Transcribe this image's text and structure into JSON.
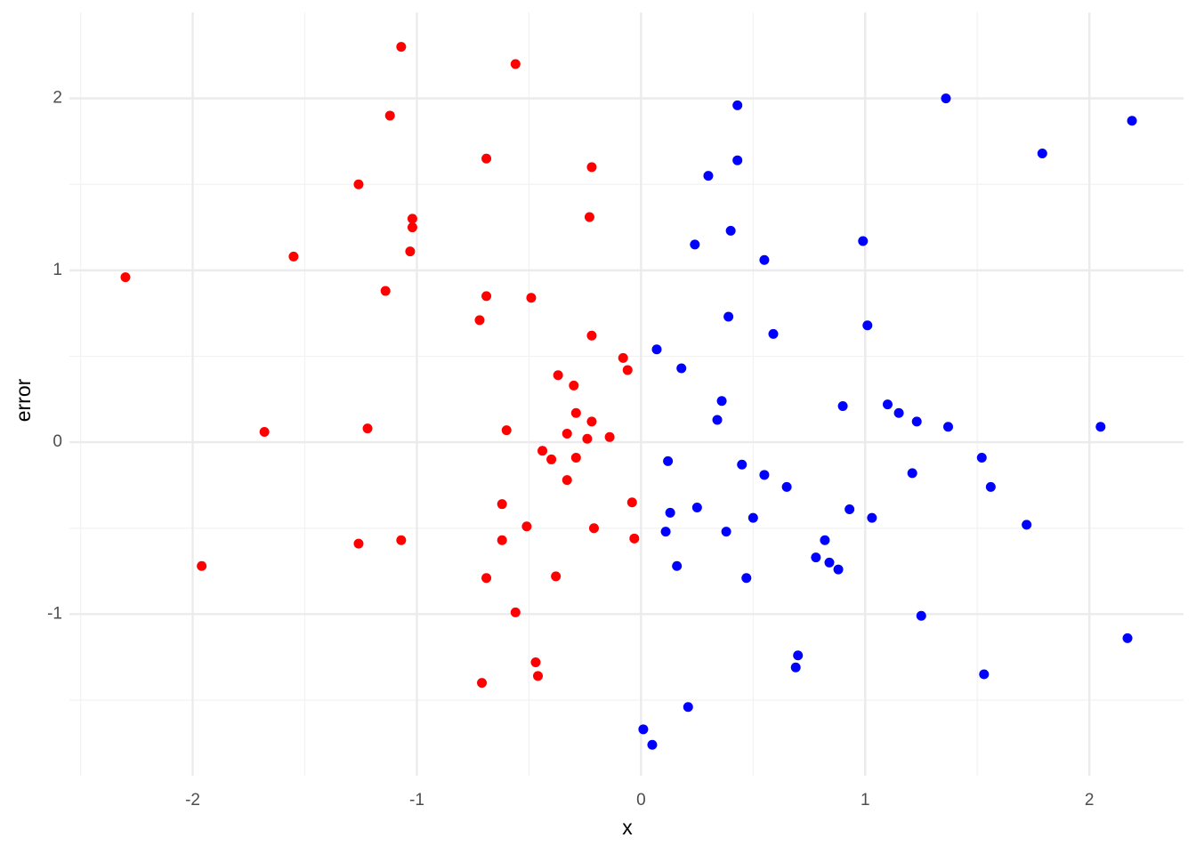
{
  "chart_data": {
    "type": "scatter",
    "x_label": "x",
    "y_label": "error",
    "xlim": [
      -2.55,
      2.42
    ],
    "ylim": [
      -1.94,
      2.5
    ],
    "xticks": [
      -2,
      -1,
      0,
      1,
      2
    ],
    "yticks": [
      -1,
      0,
      1,
      2
    ],
    "x_minor_ticks": [
      -2.5,
      -1.5,
      -0.5,
      0.5,
      1.5
    ],
    "y_minor_ticks": [
      -1.5,
      -0.5,
      0.5,
      1.5
    ],
    "grid": true,
    "series": [
      {
        "color": "#ff0000",
        "x": [
          -2.3,
          -1.96,
          -1.68,
          -1.55,
          -1.26,
          -1.26,
          -1.22,
          -1.14,
          -1.12,
          -1.07,
          -1.07,
          -1.03,
          -1.02,
          -1.02,
          -0.72,
          -0.71,
          -0.69,
          -0.69,
          -0.69,
          -0.62,
          -0.62,
          -0.6,
          -0.56,
          -0.56,
          -0.51,
          -0.49,
          -0.47,
          -0.46,
          -0.44,
          -0.4,
          -0.38,
          -0.37,
          -0.33,
          -0.33,
          -0.3,
          -0.29,
          -0.29,
          -0.24,
          -0.23,
          -0.22,
          -0.22,
          -0.22,
          -0.21,
          -0.14,
          -0.08,
          -0.06,
          -0.04,
          -0.03
        ],
        "values": [
          0.96,
          -0.72,
          0.06,
          1.08,
          1.5,
          -0.59,
          0.08,
          0.88,
          1.9,
          2.3,
          -0.57,
          1.11,
          1.25,
          1.3,
          0.71,
          -1.4,
          -0.79,
          0.85,
          1.65,
          -0.57,
          -0.36,
          0.07,
          2.2,
          -0.99,
          -0.49,
          0.84,
          -1.28,
          -1.36,
          -0.05,
          -0.1,
          -0.78,
          0.39,
          0.05,
          -0.22,
          0.33,
          -0.09,
          0.17,
          0.02,
          1.31,
          1.6,
          0.12,
          0.62,
          -0.5,
          0.03,
          0.49,
          0.42,
          -0.35,
          -0.56
        ]
      },
      {
        "color": "#0000ff",
        "x": [
          0.01,
          0.05,
          0.07,
          0.11,
          0.12,
          0.13,
          0.16,
          0.18,
          0.21,
          0.24,
          0.25,
          0.3,
          0.34,
          0.36,
          0.38,
          0.39,
          0.4,
          0.43,
          0.43,
          0.45,
          0.47,
          0.5,
          0.55,
          0.55,
          0.59,
          0.65,
          0.69,
          0.7,
          0.78,
          0.82,
          0.84,
          0.88,
          0.9,
          0.93,
          0.99,
          1.01,
          1.03,
          1.1,
          1.15,
          1.21,
          1.23,
          1.25,
          1.36,
          1.37,
          1.52,
          1.53,
          1.56,
          1.72,
          1.79,
          2.05,
          2.17,
          2.19
        ],
        "values": [
          -1.67,
          -1.76,
          0.54,
          -0.52,
          -0.11,
          -0.41,
          -0.72,
          0.43,
          -1.54,
          1.15,
          -0.38,
          1.55,
          0.13,
          0.24,
          -0.52,
          0.73,
          1.23,
          1.96,
          1.64,
          -0.13,
          -0.79,
          -0.44,
          1.06,
          -0.19,
          0.63,
          -0.26,
          -1.31,
          -1.24,
          -0.67,
          -0.57,
          -0.7,
          -0.74,
          0.21,
          -0.39,
          1.17,
          0.68,
          -0.44,
          0.22,
          0.17,
          -0.18,
          0.12,
          -1.01,
          2.0,
          0.09,
          -0.09,
          -1.35,
          -0.26,
          -0.48,
          1.68,
          0.09,
          -1.14,
          1.87
        ]
      }
    ]
  }
}
